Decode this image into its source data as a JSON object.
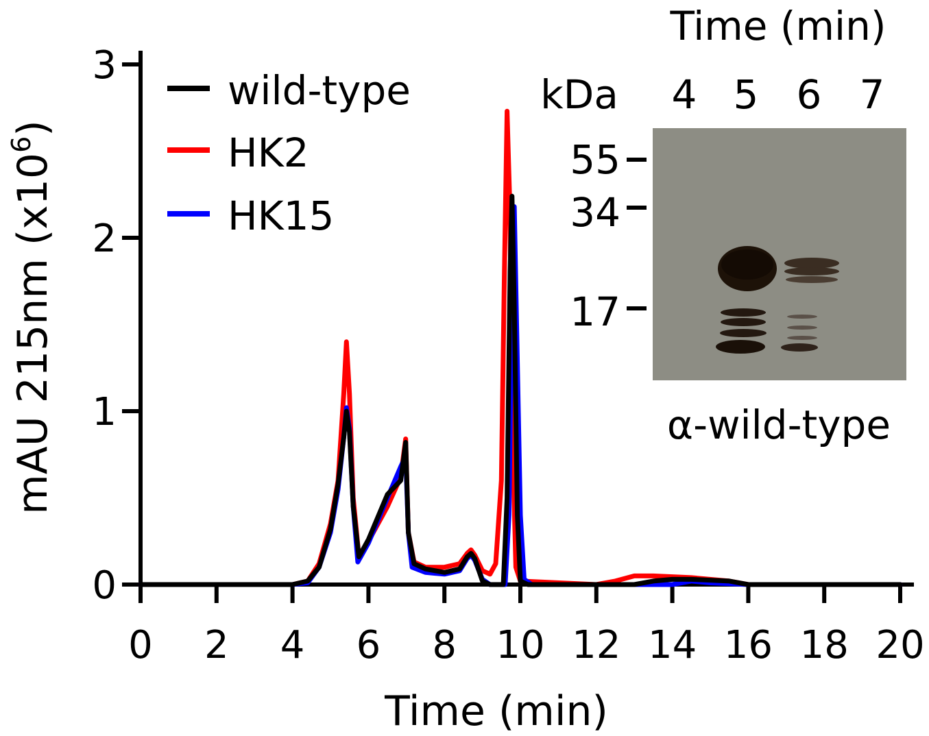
{
  "chart_data": {
    "type": "line",
    "xlabel": "Time (min)",
    "ylabel": "mAU 215nm (x10",
    "ylabel_sup": "6",
    "ylabel_close": ")",
    "xlim": [
      0,
      20
    ],
    "ylim": [
      0,
      3
    ],
    "xticks": [
      "0",
      "2",
      "4",
      "6",
      "8",
      "10",
      "12",
      "14",
      "16",
      "18",
      "20"
    ],
    "yticks": [
      "0",
      "1",
      "2",
      "3"
    ],
    "grid": false,
    "legend_position": "top-left",
    "series": [
      {
        "name": "HK2",
        "color": "#ff0000",
        "points": [
          [
            0,
            0
          ],
          [
            4,
            0
          ],
          [
            4.4,
            0.02
          ],
          [
            4.7,
            0.12
          ],
          [
            5.0,
            0.35
          ],
          [
            5.2,
            0.6
          ],
          [
            5.35,
            1.1
          ],
          [
            5.42,
            1.4
          ],
          [
            5.5,
            1.1
          ],
          [
            5.6,
            0.5
          ],
          [
            5.75,
            0.16
          ],
          [
            6.0,
            0.25
          ],
          [
            6.5,
            0.45
          ],
          [
            6.85,
            0.62
          ],
          [
            6.98,
            0.84
          ],
          [
            7.05,
            0.3
          ],
          [
            7.2,
            0.13
          ],
          [
            7.5,
            0.1
          ],
          [
            8.0,
            0.1
          ],
          [
            8.4,
            0.12
          ],
          [
            8.6,
            0.18
          ],
          [
            8.7,
            0.2
          ],
          [
            8.8,
            0.17
          ],
          [
            9.0,
            0.08
          ],
          [
            9.2,
            0.06
          ],
          [
            9.35,
            0.12
          ],
          [
            9.5,
            0.6
          ],
          [
            9.58,
            1.8
          ],
          [
            9.65,
            2.73
          ],
          [
            9.72,
            2.2
          ],
          [
            9.8,
            0.8
          ],
          [
            9.88,
            0.1
          ],
          [
            10.0,
            0.02
          ],
          [
            12.0,
            0
          ],
          [
            12.5,
            0.02
          ],
          [
            13.0,
            0.05
          ],
          [
            13.5,
            0.05
          ],
          [
            14.5,
            0.04
          ],
          [
            15.5,
            0.02
          ],
          [
            16.0,
            0
          ],
          [
            20,
            0
          ]
        ]
      },
      {
        "name": "HK15",
        "color": "#0000ff",
        "points": [
          [
            0,
            0
          ],
          [
            4,
            0
          ],
          [
            4.4,
            0.01
          ],
          [
            4.7,
            0.1
          ],
          [
            5.0,
            0.3
          ],
          [
            5.2,
            0.55
          ],
          [
            5.35,
            0.85
          ],
          [
            5.42,
            1.02
          ],
          [
            5.5,
            0.9
          ],
          [
            5.6,
            0.45
          ],
          [
            5.72,
            0.13
          ],
          [
            6.0,
            0.24
          ],
          [
            6.5,
            0.5
          ],
          [
            6.85,
            0.68
          ],
          [
            6.98,
            0.74
          ],
          [
            7.05,
            0.3
          ],
          [
            7.15,
            0.1
          ],
          [
            7.5,
            0.07
          ],
          [
            8.0,
            0.06
          ],
          [
            8.4,
            0.08
          ],
          [
            8.6,
            0.15
          ],
          [
            8.7,
            0.17
          ],
          [
            8.8,
            0.14
          ],
          [
            9.0,
            0.03
          ],
          [
            9.2,
            0
          ],
          [
            9.6,
            0
          ],
          [
            9.7,
            0.4
          ],
          [
            9.78,
            1.7
          ],
          [
            9.84,
            2.18
          ],
          [
            9.9,
            1.5
          ],
          [
            10.0,
            0.4
          ],
          [
            10.1,
            0.03
          ],
          [
            10.3,
            0
          ],
          [
            14.0,
            0
          ],
          [
            14.5,
            0.02
          ],
          [
            15.0,
            0.01
          ],
          [
            16.0,
            0
          ],
          [
            20,
            0
          ]
        ]
      },
      {
        "name": "wild-type",
        "color": "#000000",
        "points": [
          [
            0,
            0
          ],
          [
            4,
            0
          ],
          [
            4.4,
            0.02
          ],
          [
            4.7,
            0.1
          ],
          [
            5.0,
            0.32
          ],
          [
            5.2,
            0.58
          ],
          [
            5.35,
            0.85
          ],
          [
            5.42,
            1.0
          ],
          [
            5.5,
            0.88
          ],
          [
            5.6,
            0.45
          ],
          [
            5.75,
            0.16
          ],
          [
            6.0,
            0.26
          ],
          [
            6.5,
            0.52
          ],
          [
            6.85,
            0.6
          ],
          [
            6.98,
            0.82
          ],
          [
            7.05,
            0.3
          ],
          [
            7.2,
            0.12
          ],
          [
            7.5,
            0.09
          ],
          [
            8.0,
            0.07
          ],
          [
            8.4,
            0.09
          ],
          [
            8.6,
            0.16
          ],
          [
            8.7,
            0.18
          ],
          [
            8.8,
            0.15
          ],
          [
            9.0,
            0.02
          ],
          [
            9.2,
            0
          ],
          [
            9.55,
            0
          ],
          [
            9.65,
            0.5
          ],
          [
            9.73,
            1.8
          ],
          [
            9.78,
            2.24
          ],
          [
            9.84,
            1.6
          ],
          [
            9.92,
            0.4
          ],
          [
            10.0,
            0.02
          ],
          [
            10.2,
            0
          ],
          [
            13.0,
            0
          ],
          [
            13.5,
            0.02
          ],
          [
            14.0,
            0.03
          ],
          [
            14.5,
            0.03
          ],
          [
            15.5,
            0.02
          ],
          [
            16.0,
            0
          ],
          [
            20,
            0
          ]
        ]
      }
    ],
    "inset": {
      "title": "Time (min)",
      "unit_label": "kDa",
      "lanes": [
        "4",
        "5",
        "6",
        "7"
      ],
      "markers": [
        "55",
        "34",
        "17"
      ],
      "caption": "α-wild-type"
    }
  }
}
